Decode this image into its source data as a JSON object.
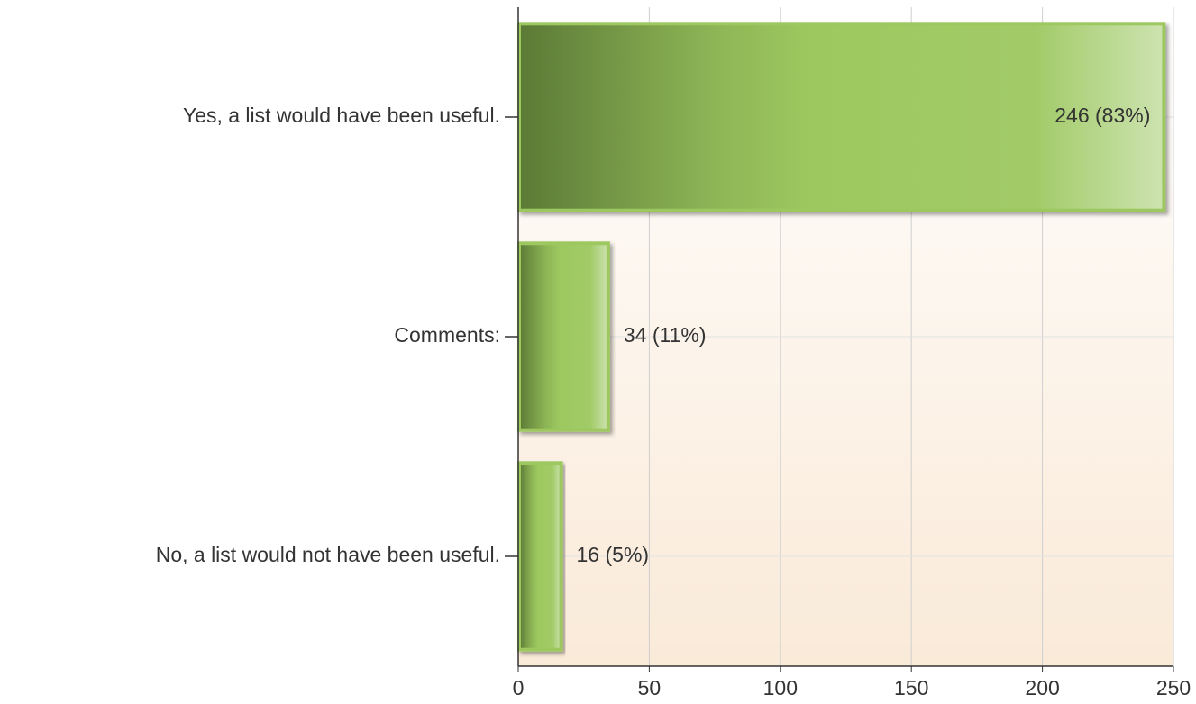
{
  "chart_data": {
    "type": "bar",
    "orientation": "horizontal",
    "categories": [
      "Yes, a list would have been useful.",
      "Comments:",
      "No, a list would not have been useful."
    ],
    "values": [
      246,
      34,
      16
    ],
    "value_labels": [
      "246 (83%)",
      "34 (11%)",
      "16 (5%)"
    ],
    "color": "#9dc85f",
    "xlim": [
      0,
      250
    ],
    "xticks": [
      0,
      50,
      100,
      150,
      200,
      250
    ],
    "grid": true
  }
}
